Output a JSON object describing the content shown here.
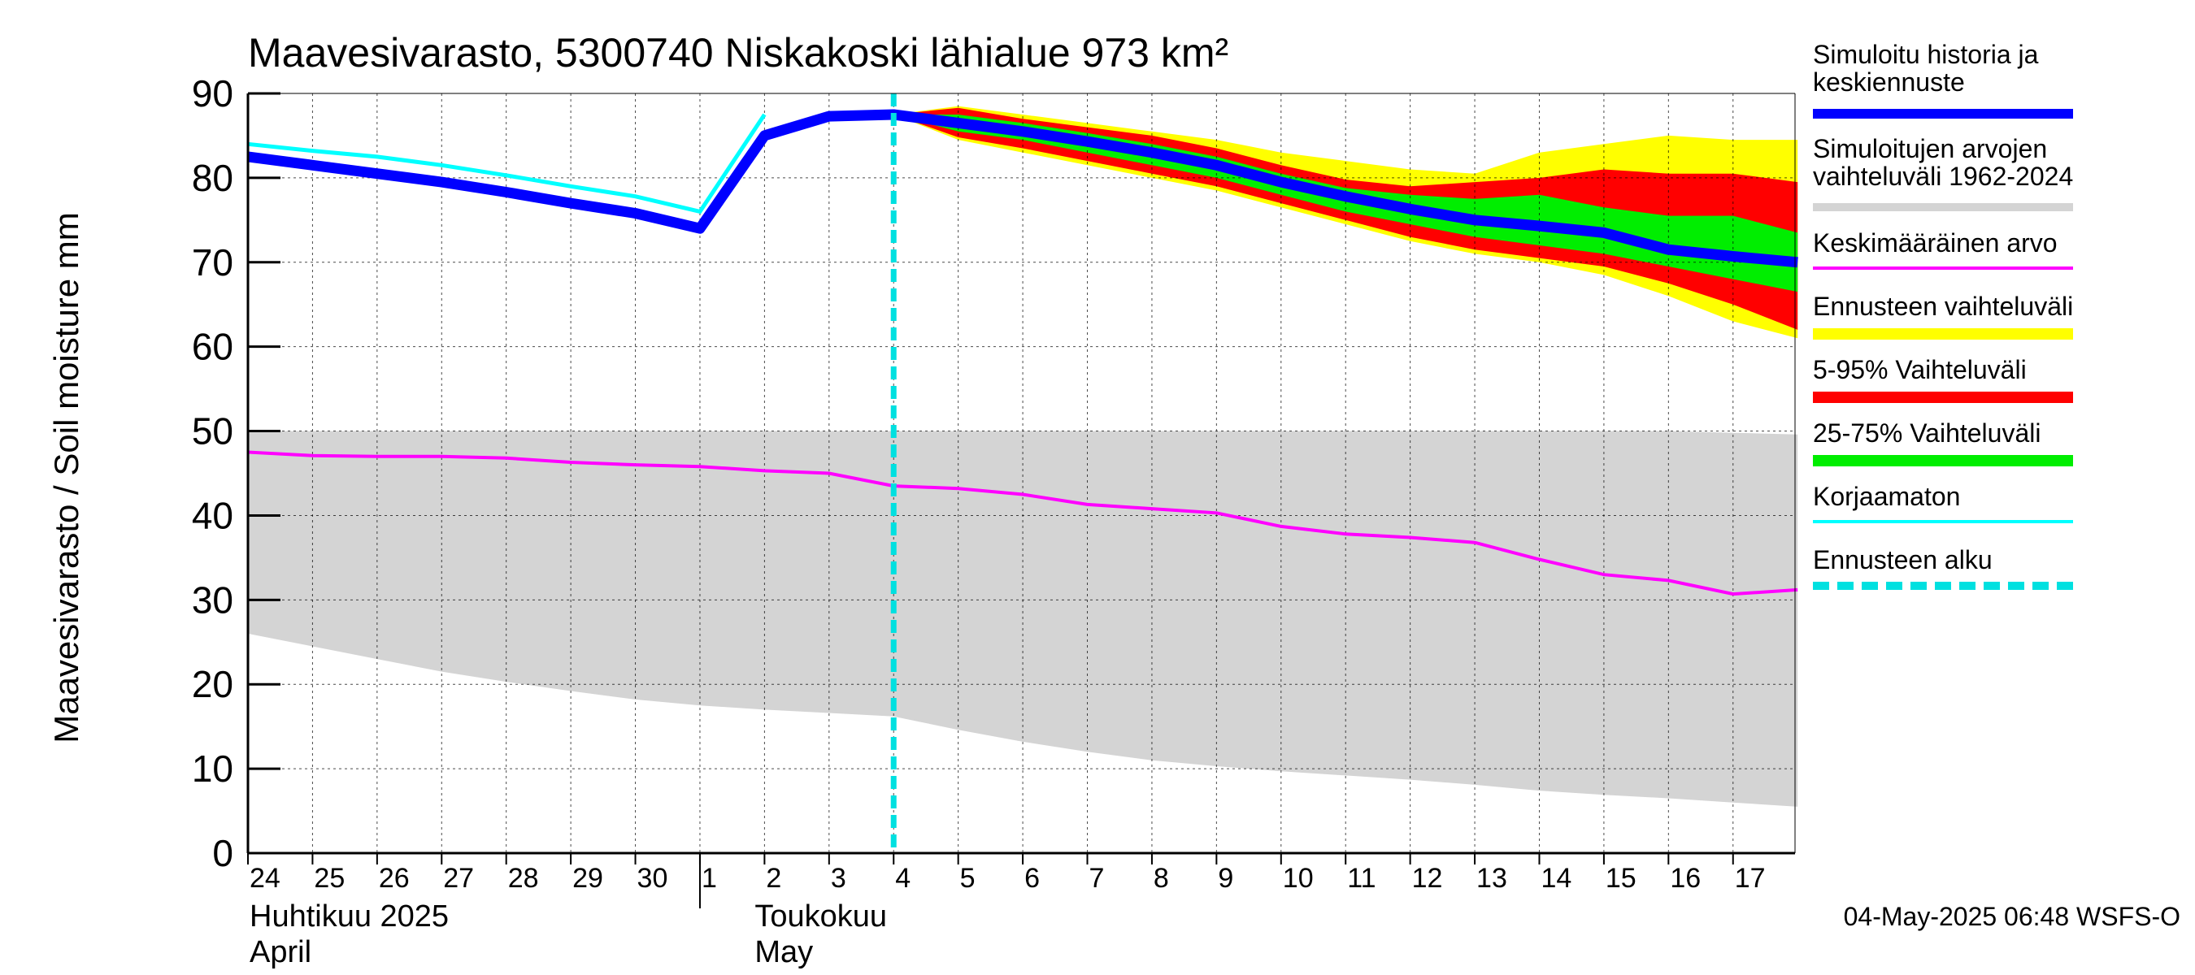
{
  "colors": {
    "history_band": "#d4d4d4",
    "forecast_outer": "#ffff00",
    "p5_95": "#ff0000",
    "p25_75": "#00ee00",
    "simulated": "#0000ff",
    "mean": "#ff00ff",
    "uncorrected": "#00ffff",
    "forecast_start": "#00e0e0",
    "grid": "#000000"
  },
  "chart_data": {
    "type": "area",
    "title": "Maavesivarasto, 5300740 Niskakoski lähialue 973 km²",
    "ylabel": "Maavesivarasto / Soil moisture   mm",
    "ylim": [
      0,
      90
    ],
    "yticks": [
      "0",
      "10",
      "20",
      "30",
      "40",
      "50",
      "60",
      "70",
      "80",
      "90"
    ],
    "x_day_labels": [
      "24",
      "25",
      "26",
      "27",
      "28",
      "29",
      "30",
      "1",
      "2",
      "3",
      "4",
      "5",
      "6",
      "7",
      "8",
      "9",
      "10",
      "11",
      "12",
      "13",
      "14",
      "15",
      "16",
      "17"
    ],
    "x_day_numbers": [
      24,
      25,
      26,
      27,
      28,
      29,
      30,
      1,
      2,
      3,
      4,
      5,
      6,
      7,
      8,
      9,
      10,
      11,
      12,
      13,
      14,
      15,
      16,
      17
    ],
    "month_labels": [
      {
        "fi": "Huhtikuu  2025",
        "en": "April"
      },
      {
        "fi": "Toukokuu",
        "en": "May"
      }
    ],
    "forecast_start_day_index": 10,
    "series": [
      {
        "name": "Simuloitujen arvojen vaihteluväli 1962-2024",
        "kind": "band",
        "x": [
          0,
          1,
          2,
          3,
          4,
          5,
          6,
          7,
          8,
          9,
          10,
          11,
          12,
          13,
          14,
          15,
          16,
          17,
          18,
          19,
          20,
          21,
          22,
          23,
          24
        ],
        "low": [
          26,
          24.5,
          23,
          21.5,
          20.3,
          19.2,
          18.2,
          17.5,
          17,
          16.6,
          16.2,
          14.6,
          13.2,
          12,
          11,
          10.3,
          9.7,
          9.2,
          8.7,
          8.1,
          7.4,
          6.9,
          6.5,
          6,
          5.5
        ],
        "high": [
          50,
          50,
          50,
          50,
          50,
          50,
          50,
          50,
          50,
          50,
          50,
          50,
          50,
          50,
          50,
          50,
          50,
          50,
          50,
          50,
          50,
          50,
          50,
          49.8,
          49.6
        ]
      },
      {
        "name": "Keskimääräinen arvo",
        "kind": "line",
        "x": [
          0,
          1,
          2,
          3,
          4,
          5,
          6,
          7,
          8,
          9,
          10,
          11,
          12,
          13,
          14,
          15,
          16,
          17,
          18,
          19,
          20,
          21,
          22,
          23,
          24
        ],
        "values": [
          47.5,
          47.1,
          47,
          47,
          46.8,
          46.3,
          46,
          45.8,
          45.3,
          45,
          43.5,
          43.2,
          42.5,
          41.3,
          40.8,
          40.3,
          38.7,
          37.8,
          37.4,
          36.8,
          34.8,
          33,
          32.3,
          30.7,
          31.2
        ]
      },
      {
        "name": "Ennusteen vaihteluväli",
        "kind": "band",
        "x": [
          10,
          11,
          12,
          13,
          14,
          15,
          16,
          17,
          18,
          19,
          20,
          21,
          22,
          23,
          24
        ],
        "low": [
          87.5,
          84.5,
          83,
          81.5,
          80,
          78.5,
          76.5,
          74.5,
          72.5,
          71,
          70,
          68.5,
          66,
          63,
          61
        ],
        "high": [
          87.5,
          88.5,
          87.5,
          86.5,
          85.5,
          84.5,
          83,
          82,
          81,
          80.5,
          83,
          84,
          85,
          84.5,
          84.5
        ]
      },
      {
        "name": "5-95% Vaihteluväli",
        "kind": "band",
        "x": [
          10,
          11,
          12,
          13,
          14,
          15,
          16,
          17,
          18,
          19,
          20,
          21,
          22,
          23,
          24
        ],
        "low": [
          87.5,
          84.8,
          83.5,
          82,
          80.5,
          79,
          77,
          75,
          73,
          71.5,
          70.5,
          69.5,
          67.5,
          65,
          62
        ],
        "high": [
          87.5,
          88.3,
          87,
          86,
          85,
          83.5,
          81.5,
          79.8,
          79,
          79.5,
          80,
          81,
          80.5,
          80.5,
          79.5
        ]
      },
      {
        "name": "25-75% Vaihteluväli",
        "kind": "band",
        "x": [
          10,
          11,
          12,
          13,
          14,
          15,
          16,
          17,
          18,
          19,
          20,
          21,
          22,
          23,
          24
        ],
        "low": [
          87.5,
          85.5,
          84.5,
          83,
          81.5,
          80,
          78,
          76,
          74.5,
          73,
          72,
          71,
          69.5,
          68,
          66.5
        ],
        "high": [
          87.5,
          87.5,
          86.5,
          85.3,
          84,
          82.5,
          80.5,
          78.8,
          78,
          77.5,
          78,
          76.5,
          75.5,
          75.5,
          73.5
        ]
      },
      {
        "name": "Simuloitu historia ja keskiennuste",
        "kind": "line",
        "x": [
          0,
          1,
          2,
          3,
          4,
          5,
          6,
          7,
          8,
          9,
          10,
          11,
          12,
          13,
          14,
          15,
          16,
          17,
          18,
          19,
          20,
          21,
          22,
          23,
          24
        ],
        "values": [
          82.5,
          81.5,
          80.5,
          79.5,
          78.3,
          77,
          75.8,
          74,
          85,
          87.3,
          87.5,
          86.5,
          85.5,
          84.3,
          83,
          81.5,
          79.5,
          77.8,
          76.3,
          75,
          74.3,
          73.5,
          71.5,
          70.7,
          70
        ]
      },
      {
        "name": "Korjaamaton",
        "kind": "line",
        "x": [
          0,
          1,
          2,
          3,
          4,
          5,
          6,
          7,
          8
        ],
        "values": [
          84,
          83.2,
          82.5,
          81.5,
          80.3,
          79,
          77.8,
          76,
          87.5
        ]
      }
    ]
  },
  "legend": [
    {
      "label": "Simuloitu historia ja\nkeskiennuste",
      "swatch": "thick-blue"
    },
    {
      "label": "Simuloitujen arvojen\nvaihteluväli 1962-2024",
      "swatch": "gray"
    },
    {
      "label": "Keskimääräinen arvo",
      "swatch": "magenta"
    },
    {
      "label": "Ennusteen vaihteluväli",
      "swatch": "yellow"
    },
    {
      "label": "5-95% Vaihteluväli",
      "swatch": "red"
    },
    {
      "label": "25-75% Vaihteluväli",
      "swatch": "green"
    },
    {
      "label": "Korjaamaton",
      "swatch": "cyan"
    },
    {
      "label": "Ennusteen alku",
      "swatch": "dashed-cyan"
    }
  ],
  "footer": "04-May-2025 06:48 WSFS-O"
}
